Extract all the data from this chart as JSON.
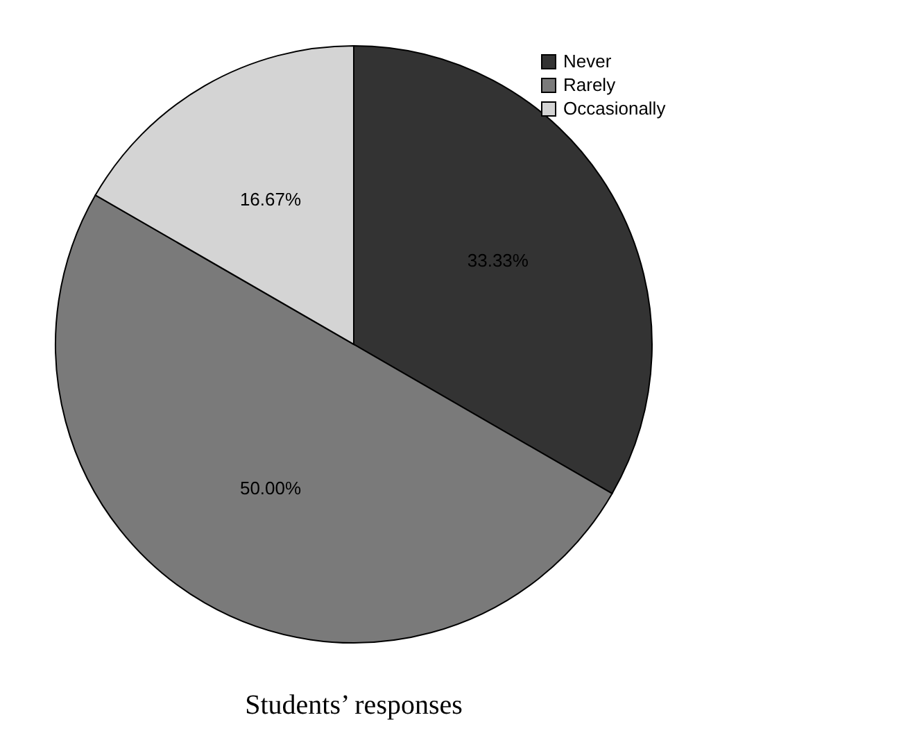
{
  "chart_data": {
    "type": "pie",
    "title": "Students’ responses",
    "categories": [
      "Never",
      "Rarely",
      "Occasionally"
    ],
    "values": [
      33.33,
      50,
      16.67
    ],
    "value_labels": [
      "33.33%",
      "50.00%",
      "16.67%"
    ],
    "colors": [
      "#333333",
      "#7a7a7a",
      "#d4d4d4"
    ],
    "legend": "top right"
  }
}
